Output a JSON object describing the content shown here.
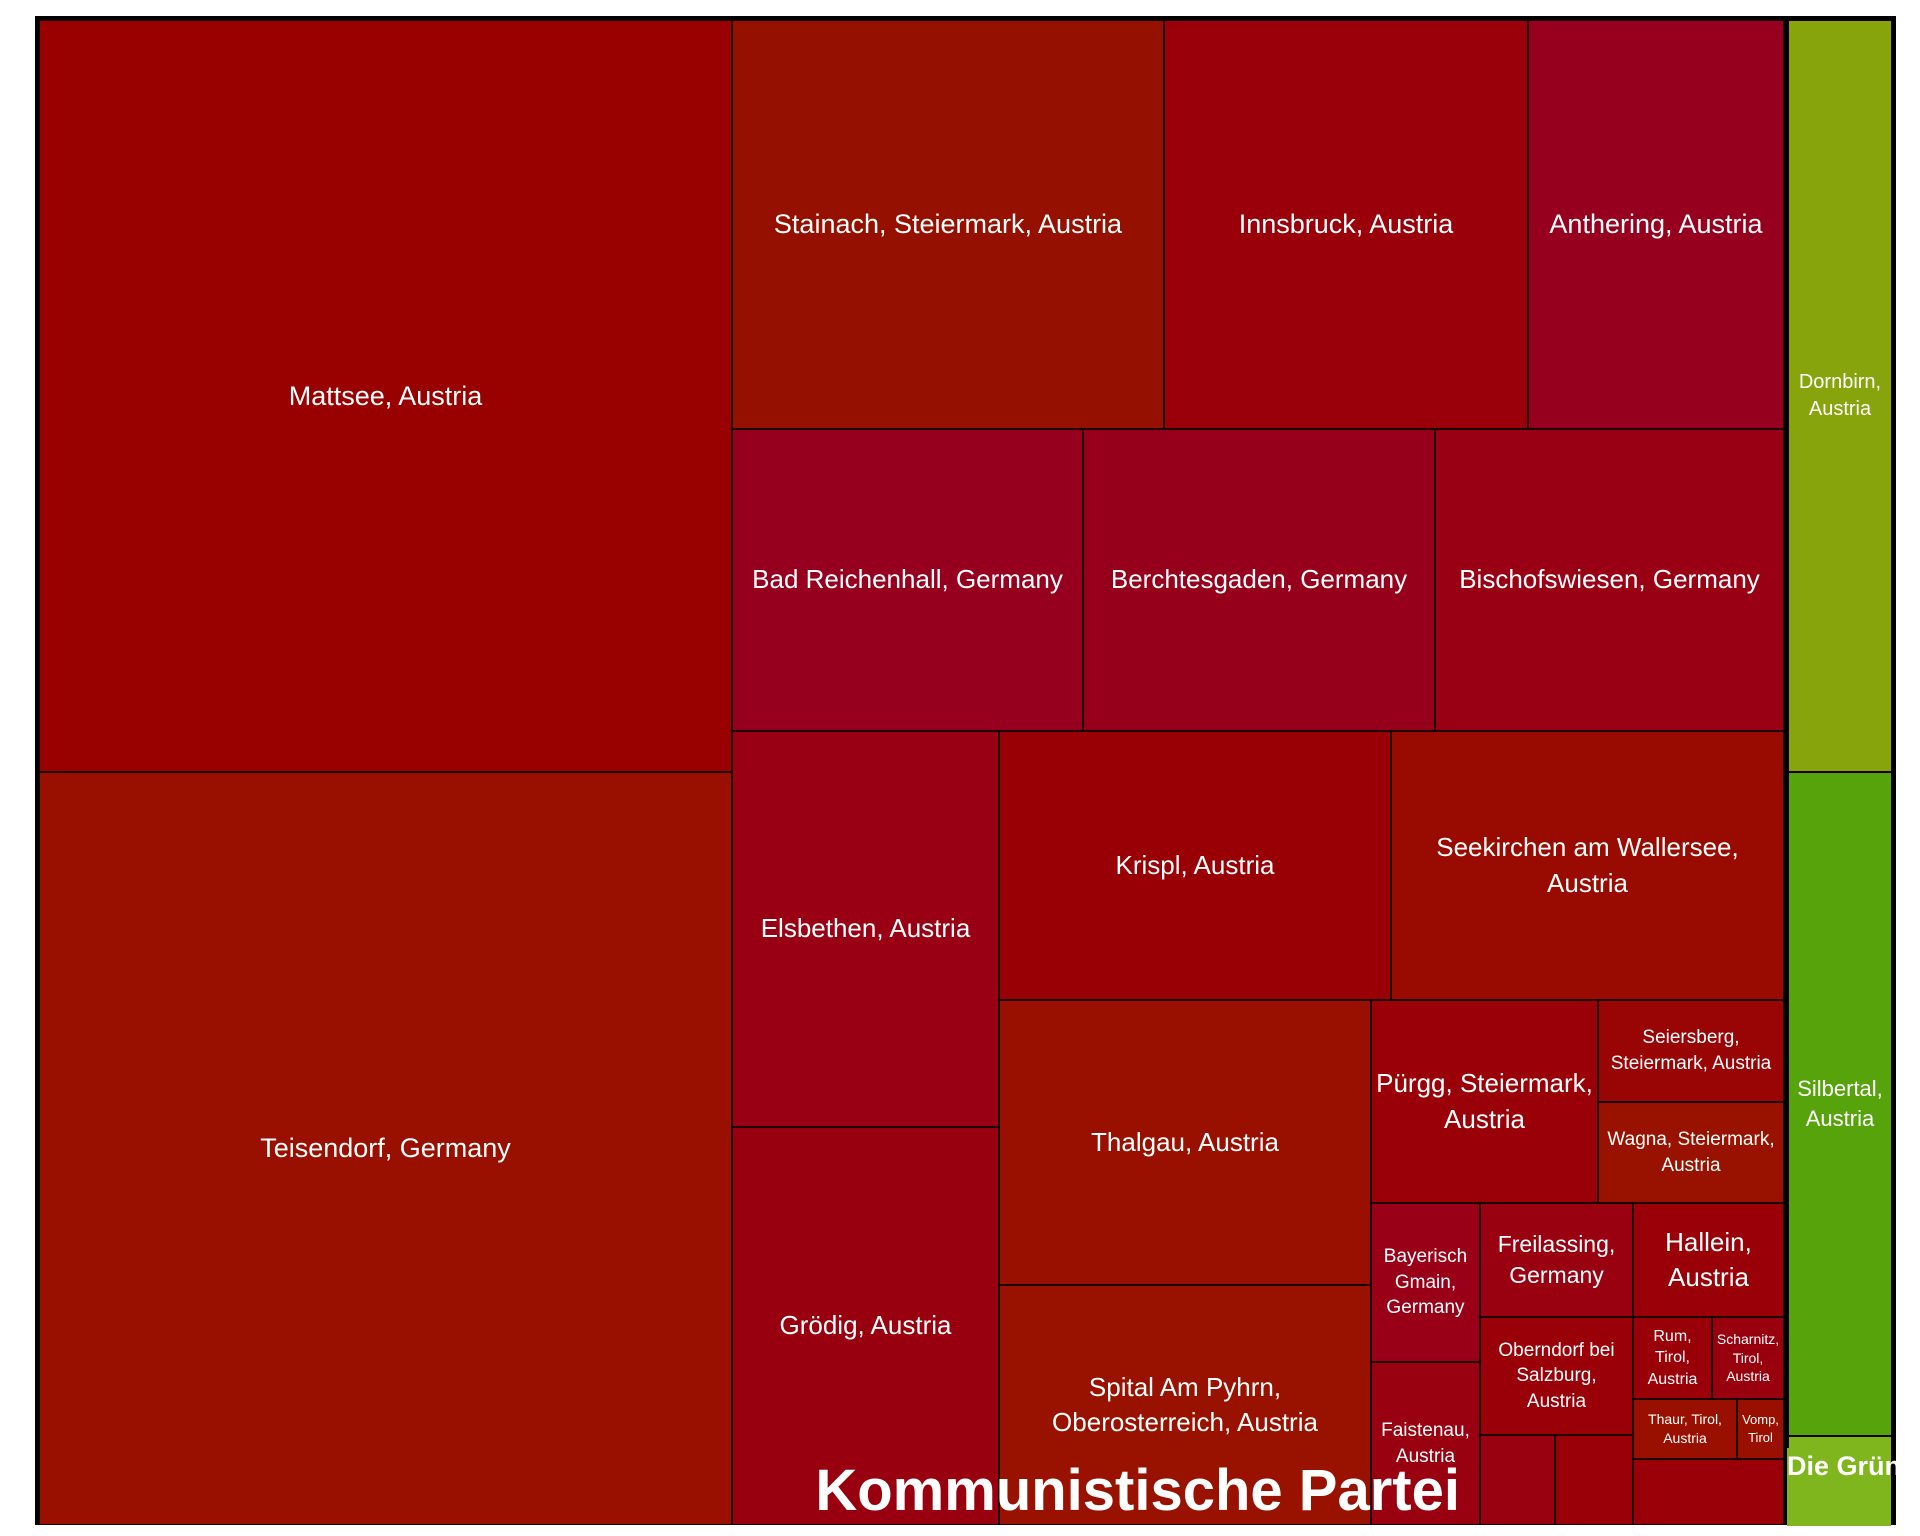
{
  "chart_data": {
    "type": "treemap",
    "groups": [
      {
        "name": "Kommunistische Partei",
        "items": [
          {
            "label": "Mattsee, Austria",
            "color": "#990000"
          },
          {
            "label": "Teisendorf, Germany",
            "color": "#990f00"
          },
          {
            "label": "Stainach, Steiermark, Austria",
            "color": "#961000"
          },
          {
            "label": "Innsbruck, Austria",
            "color": "#99000a"
          },
          {
            "label": "Anthering, Austria",
            "color": "#96001e"
          },
          {
            "label": "Bad Reichenhall, Germany",
            "color": "#96001e"
          },
          {
            "label": "Berchtesgaden, Germany",
            "color": "#96001a"
          },
          {
            "label": "Bischofswiesen, Germany",
            "color": "#990014"
          },
          {
            "label": "Elsbethen, Austria",
            "color": "#990014"
          },
          {
            "label": "Krispl, Austria",
            "color": "#990005"
          },
          {
            "label": "Seekirchen am Wallersee, Austria",
            "color": "#990b00"
          },
          {
            "label": "Grödig, Austria",
            "color": "#99000f"
          },
          {
            "label": "Thalgau, Austria",
            "color": "#991000"
          },
          {
            "label": "Spital Am Pyhrn, Oberosterreich, Austria",
            "color": "#991200"
          },
          {
            "label": "Pürgg, Steiermark, Austria",
            "color": "#990008"
          },
          {
            "label": "Seiersberg, Steiermark, Austria",
            "color": "#990505"
          },
          {
            "label": "Wagna, Steiermark, Austria",
            "color": "#991200"
          },
          {
            "label": "Bayerisch Gmain, Germany",
            "color": "#990018"
          },
          {
            "label": "Freilassing, Germany",
            "color": "#990010"
          },
          {
            "label": "Hallein, Austria",
            "color": "#990008"
          },
          {
            "label": "Oberndorf bei Salzburg, Austria",
            "color": "#990008"
          },
          {
            "label": "Rum, Tirol, Austria",
            "color": "#990008"
          },
          {
            "label": "Scharnitz, Tirol, Austria",
            "color": "#99000d"
          },
          {
            "label": "Faistenau, Austria",
            "color": "#990010"
          },
          {
            "label": "Thaur, Tirol, Austria",
            "color": "#991000"
          },
          {
            "label": "Vomp, Tirol",
            "color": "#990f00"
          },
          {
            "label": "",
            "color": "#990010"
          },
          {
            "label": "",
            "color": "#990008"
          },
          {
            "label": "",
            "color": "#990008"
          }
        ]
      },
      {
        "name": "Die Grünen",
        "items": [
          {
            "label": "Dornbirn, Austria",
            "color": "#87a40c"
          },
          {
            "label": "Silbertal, Austria",
            "color": "#57a30b"
          },
          {
            "label": "",
            "color": "#7fb51d"
          }
        ]
      }
    ]
  }
}
